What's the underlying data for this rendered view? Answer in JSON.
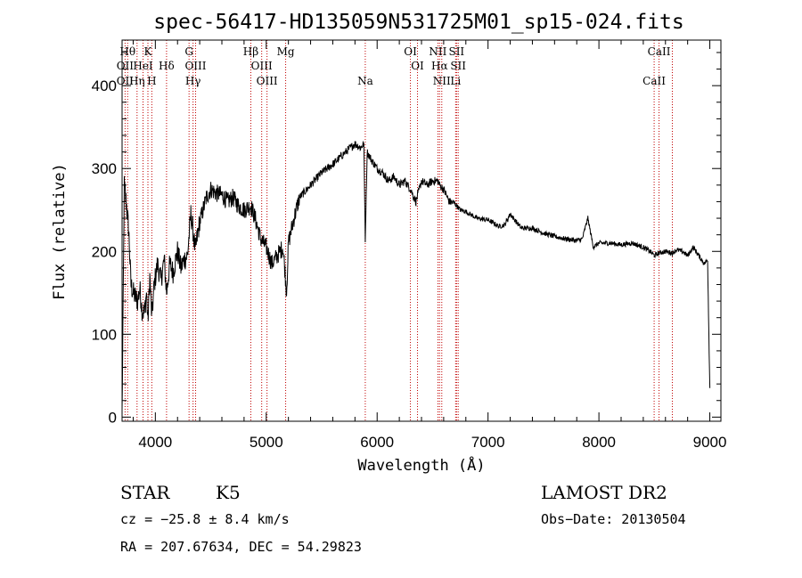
{
  "chart_data": {
    "type": "line",
    "title": "spec-56417-HD135059N531725M01_sp15-024.fits",
    "xlabel": "Wavelength (Å)",
    "ylabel": "Flux (relative)",
    "xlim": [
      3700,
      9100
    ],
    "ylim": [
      -5,
      455
    ],
    "x_ticks": [
      4000,
      5000,
      6000,
      7000,
      8000,
      9000
    ],
    "y_ticks": [
      0,
      100,
      200,
      300,
      400
    ],
    "grid": false,
    "series": [
      {
        "x": [
          3700,
          3720,
          3740,
          3760,
          3780,
          3800,
          3820,
          3840,
          3860,
          3880,
          3900,
          3920,
          3933,
          3950,
          3968,
          3990,
          4020,
          4050,
          4080,
          4101,
          4130,
          4160,
          4200,
          4230,
          4260,
          4290,
          4320,
          4340,
          4360,
          4380,
          4400,
          4430,
          4460,
          4500,
          4550,
          4600,
          4650,
          4700,
          4750,
          4800,
          4861,
          4900,
          4950,
          5000,
          5050,
          5100,
          5150,
          5170,
          5183,
          5200,
          5250,
          5300,
          5400,
          5500,
          5600,
          5700,
          5800,
          5850,
          5880,
          5893,
          5910,
          5950,
          6000,
          6050,
          6100,
          6150,
          6200,
          6250,
          6300,
          6350,
          6400,
          6450,
          6500,
          6550,
          6563,
          6600,
          6650,
          6700,
          6750,
          6800,
          6900,
          7000,
          7100,
          7150,
          7200,
          7300,
          7400,
          7500,
          7600,
          7700,
          7800,
          7850,
          7900,
          7950,
          8000,
          8100,
          8200,
          8300,
          8400,
          8460,
          8500,
          8542,
          8600,
          8662,
          8700,
          8750,
          8800,
          8850,
          8900,
          8950,
          8980,
          9000
        ],
        "y": [
          5,
          280,
          255,
          225,
          160,
          150,
          145,
          140,
          155,
          130,
          125,
          150,
          115,
          170,
          120,
          160,
          185,
          165,
          190,
          150,
          185,
          175,
          200,
          180,
          190,
          195,
          245,
          225,
          200,
          220,
          235,
          250,
          265,
          275,
          270,
          268,
          260,
          265,
          255,
          250,
          255,
          240,
          215,
          205,
          185,
          195,
          205,
          175,
          150,
          210,
          240,
          265,
          280,
          295,
          305,
          318,
          330,
          325,
          330,
          215,
          320,
          310,
          300,
          295,
          285,
          290,
          280,
          285,
          275,
          260,
          285,
          280,
          285,
          285,
          280,
          275,
          260,
          258,
          250,
          248,
          240,
          238,
          230,
          232,
          245,
          228,
          228,
          222,
          218,
          215,
          213,
          215,
          240,
          205,
          210,
          210,
          208,
          210,
          205,
          200,
          195,
          198,
          200,
          198,
          202,
          200,
          195,
          205,
          195,
          185,
          190,
          35
        ]
      }
    ],
    "spectral_lines": [
      {
        "x": 3727,
        "labels": [
          "OII",
          "OII"
        ],
        "rows": [
          1,
          2
        ]
      },
      {
        "x": 3750,
        "labels": [
          "Hθ"
        ],
        "rows": [
          0
        ]
      },
      {
        "x": 3835,
        "labels": [
          "Hη"
        ],
        "rows": [
          2
        ]
      },
      {
        "x": 3889,
        "labels": [
          "HeI"
        ],
        "rows": [
          1
        ]
      },
      {
        "x": 3933,
        "labels": [
          "K"
        ],
        "rows": [
          0
        ]
      },
      {
        "x": 3968,
        "labels": [
          "H"
        ],
        "rows": [
          2
        ]
      },
      {
        "x": 4101,
        "labels": [
          "Hδ"
        ],
        "rows": [
          1
        ]
      },
      {
        "x": 4304,
        "labels": [
          "G"
        ],
        "rows": [
          0
        ]
      },
      {
        "x": 4340,
        "labels": [
          "Hγ"
        ],
        "rows": [
          2
        ]
      },
      {
        "x": 4363,
        "labels": [
          "OIII"
        ],
        "rows": [
          1
        ]
      },
      {
        "x": 4861,
        "labels": [
          "Hβ"
        ],
        "rows": [
          0
        ]
      },
      {
        "x": 4959,
        "labels": [
          "OIII"
        ],
        "rows": [
          1
        ]
      },
      {
        "x": 5007,
        "labels": [
          "OIII"
        ],
        "rows": [
          2
        ]
      },
      {
        "x": 5175,
        "labels": [
          "Mg"
        ],
        "rows": [
          0
        ]
      },
      {
        "x": 5893,
        "labels": [
          "Na"
        ],
        "rows": [
          2
        ]
      },
      {
        "x": 6300,
        "labels": [
          "OI"
        ],
        "rows": [
          0
        ]
      },
      {
        "x": 6364,
        "labels": [
          "OI"
        ],
        "rows": [
          1
        ]
      },
      {
        "x": 6548,
        "labels": [
          "NII"
        ],
        "rows": [
          0
        ]
      },
      {
        "x": 6563,
        "labels": [
          "Hα"
        ],
        "rows": [
          1
        ]
      },
      {
        "x": 6583,
        "labels": [
          "NII"
        ],
        "rows": [
          2
        ]
      },
      {
        "x": 6708,
        "labels": [
          "Li"
        ],
        "rows": [
          2
        ]
      },
      {
        "x": 6716,
        "labels": [
          "SII"
        ],
        "rows": [
          0
        ]
      },
      {
        "x": 6731,
        "labels": [
          "SII"
        ],
        "rows": [
          1
        ]
      },
      {
        "x": 8498,
        "labels": [
          "CaII"
        ],
        "rows": [
          2
        ]
      },
      {
        "x": 8542,
        "labels": [
          "CaII"
        ],
        "rows": [
          0
        ]
      },
      {
        "x": 8662,
        "labels": []
      }
    ],
    "line_marker_color": "#c00000"
  },
  "info": {
    "class_label": "STAR",
    "subclass": "K5",
    "survey": "LAMOST DR2",
    "cz": "cz = −25.8 ± 8.4 km/s",
    "obs_date": "Obs−Date: 20130504",
    "coords": "RA = 207.67634, DEC =  54.29823"
  }
}
